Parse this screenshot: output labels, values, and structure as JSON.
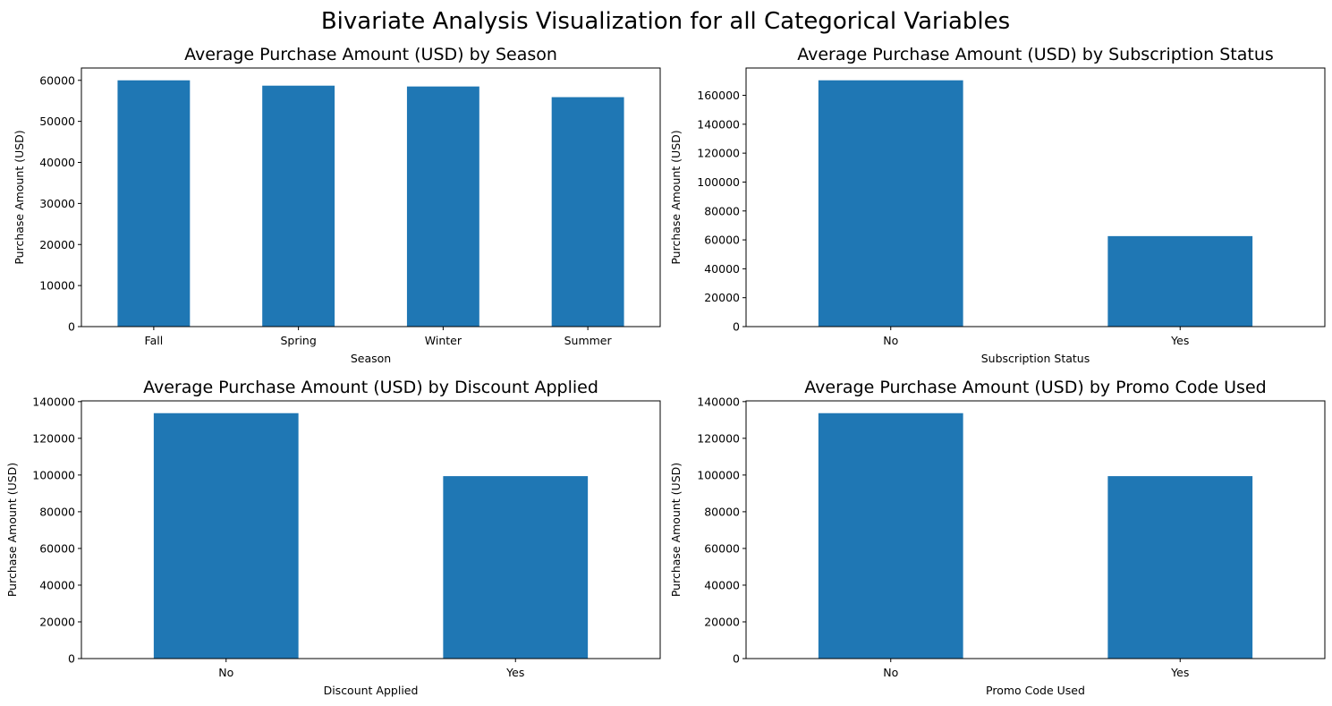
{
  "figure": {
    "title": "Bivariate Analysis Visualization for all Categorical Variables",
    "bar_color": "#1f77b4"
  },
  "chart_data": [
    {
      "type": "bar",
      "title": "Average Purchase Amount (USD) by Season",
      "xlabel": "Season",
      "ylabel": "Purchase Amount (USD)",
      "categories": [
        "Fall",
        "Spring",
        "Winter",
        "Summer"
      ],
      "values": [
        60000,
        58700,
        58500,
        55900
      ],
      "ylim": [
        0,
        63000
      ],
      "yticks": [
        0,
        10000,
        20000,
        30000,
        40000,
        50000,
        60000
      ],
      "grid": false,
      "legend": "none"
    },
    {
      "type": "bar",
      "title": "Average Purchase Amount (USD) by Subscription Status",
      "xlabel": "Subscription Status",
      "ylabel": "Purchase Amount (USD)",
      "categories": [
        "No",
        "Yes"
      ],
      "values": [
        170400,
        62600
      ],
      "ylim": [
        0,
        178900
      ],
      "yticks": [
        0,
        20000,
        40000,
        60000,
        80000,
        100000,
        120000,
        140000,
        160000
      ],
      "grid": false,
      "legend": "none"
    },
    {
      "type": "bar",
      "title": "Average Purchase Amount (USD) by Discount Applied",
      "xlabel": "Discount Applied",
      "ylabel": "Purchase Amount (USD)",
      "categories": [
        "No",
        "Yes"
      ],
      "values": [
        133700,
        99400
      ],
      "ylim": [
        0,
        140400
      ],
      "yticks": [
        0,
        20000,
        40000,
        60000,
        80000,
        100000,
        120000,
        140000
      ],
      "grid": false,
      "legend": "none"
    },
    {
      "type": "bar",
      "title": "Average Purchase Amount (USD) by Promo Code Used",
      "xlabel": "Promo Code Used",
      "ylabel": "Purchase Amount (USD)",
      "categories": [
        "No",
        "Yes"
      ],
      "values": [
        133700,
        99400
      ],
      "ylim": [
        0,
        140400
      ],
      "yticks": [
        0,
        20000,
        40000,
        60000,
        80000,
        100000,
        120000,
        140000
      ],
      "grid": false,
      "legend": "none"
    }
  ]
}
